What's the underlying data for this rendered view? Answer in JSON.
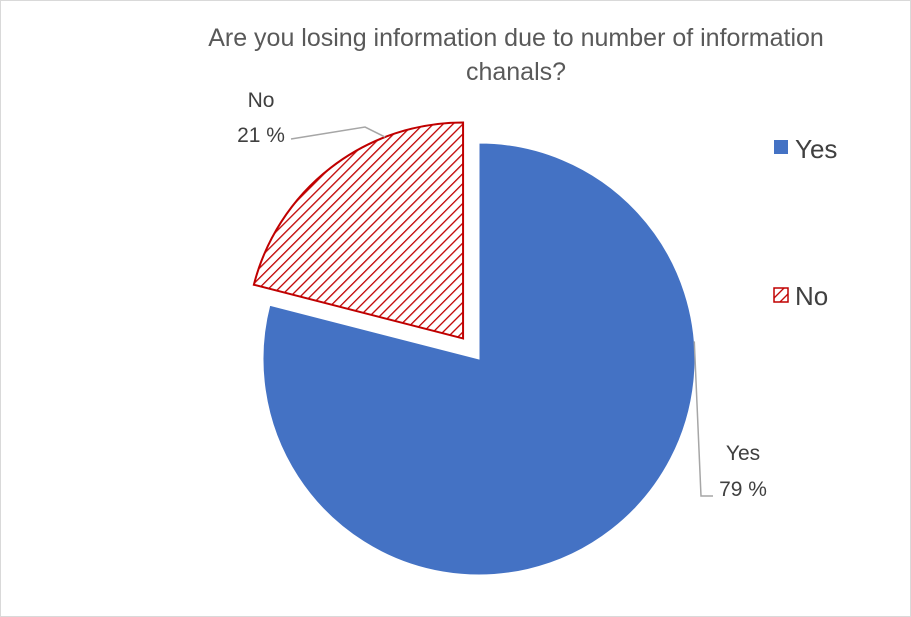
{
  "chart_data": {
    "type": "pie",
    "title": "Are you losing information due to number of information chanals?",
    "title_lines": [
      "Are you losing information due to number of information",
      "chanals?"
    ],
    "categories": [
      "Yes",
      "No"
    ],
    "values": [
      79,
      21
    ],
    "data_labels": [
      {
        "category": "Yes",
        "value": "79 %"
      },
      {
        "category": "No",
        "value": "21 %"
      }
    ],
    "exploded_slice": "No",
    "legend": {
      "position": "right",
      "entries": [
        "Yes",
        "No"
      ]
    },
    "colors": {
      "Yes": "#4472c4",
      "No_pattern": "#c00000",
      "No_pattern_bg": "#ffffff",
      "leader_line": "#a6a6a6"
    }
  }
}
